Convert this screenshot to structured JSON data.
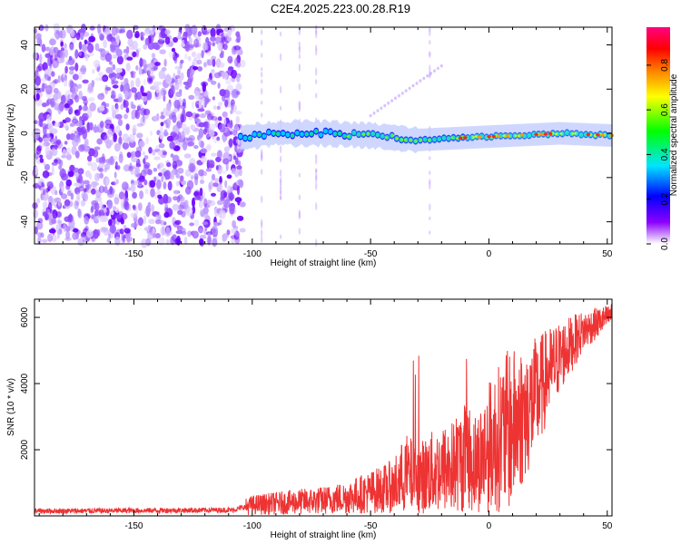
{
  "title": "C2E4.2025.223.00.28.R19",
  "chart_data": [
    {
      "type": "heatmap",
      "name": "spectrogram",
      "xlabel": "Height of straight line (km)",
      "ylabel": "Frequency (Hz)",
      "xlim": [
        -192,
        52
      ],
      "ylim": [
        -50,
        48
      ],
      "xticks": [
        -150,
        -100,
        -50,
        0,
        50
      ],
      "yticks": [
        -40,
        -20,
        0,
        20,
        40
      ],
      "colorbar": {
        "label": "Normalized spectral amplitude",
        "range": [
          0,
          0.97
        ],
        "ticks": [
          0.0,
          0.2,
          0.4,
          0.6,
          0.8
        ],
        "colormap": [
          "#ffffff",
          "#8b00ff",
          "#0000ff",
          "#00e5ff",
          "#00ff00",
          "#ffff00",
          "#ff8000",
          "#ff0000",
          "#ff0080"
        ]
      },
      "noise_region": {
        "x": [
          -192,
          -104
        ],
        "y": [
          -50,
          48
        ]
      },
      "signal_band": {
        "x": [
          -105,
          52
        ],
        "center_hz": [
          {
            "x": -105,
            "y": -2
          },
          {
            "x": -90,
            "y": 0
          },
          {
            "x": -70,
            "y": 0
          },
          {
            "x": -50,
            "y": -1
          },
          {
            "x": -30,
            "y": -3
          },
          {
            "x": -10,
            "y": -2
          },
          {
            "x": 10,
            "y": -1
          },
          {
            "x": 30,
            "y": 0
          },
          {
            "x": 52,
            "y": -1
          }
        ],
        "half_width_hz": 3
      }
    },
    {
      "type": "line",
      "name": "snr",
      "xlabel": "Height of straight line (km)",
      "ylabel": "SNR (10 * v/v)",
      "xlim": [
        -192,
        52
      ],
      "ylim": [
        0,
        6550
      ],
      "xticks": [
        -150,
        -100,
        -50,
        0,
        50
      ],
      "yticks": [
        2000,
        4000,
        6000
      ],
      "color": "#ee3333",
      "series": [
        {
          "x": [
            -192,
            -175,
            -150,
            -125,
            -108,
            -100,
            -90,
            -80,
            -70,
            -60,
            -50,
            -40,
            -35,
            -30,
            -25,
            -20,
            -15,
            -10,
            -5,
            0,
            5,
            10,
            15,
            20,
            25,
            30,
            35,
            40,
            45,
            50,
            52
          ],
          "y": [
            150,
            150,
            160,
            170,
            180,
            330,
            380,
            430,
            470,
            560,
            720,
            900,
            1280,
            1120,
            1300,
            1400,
            1500,
            1800,
            1600,
            2100,
            2400,
            2700,
            3100,
            3600,
            4300,
            4800,
            5200,
            5600,
            5800,
            6000,
            6100
          ]
        }
      ]
    }
  ]
}
